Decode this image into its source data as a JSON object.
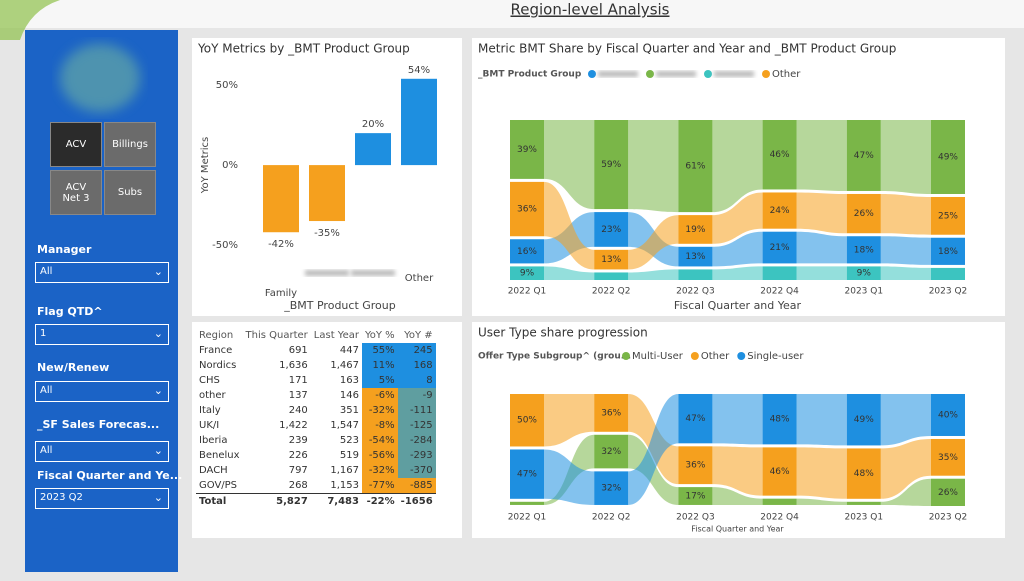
{
  "page_title": "Region-level Analysis",
  "sidebar": {
    "buttons": [
      "ACV",
      "Billings",
      "ACV Net 3",
      "Subs"
    ],
    "filters": [
      {
        "label": "Manager",
        "value": "All"
      },
      {
        "label": "Flag QTD^",
        "value": "1"
      },
      {
        "label": "New/Renew",
        "value": "All"
      },
      {
        "label": "_SF Sales Forecas...",
        "value": "All"
      },
      {
        "label": "Fiscal Quarter and Ye...",
        "value": "2023 Q2"
      }
    ]
  },
  "chart_data": [
    {
      "type": "bar",
      "title": "YoY Metrics by _BMT Product Group",
      "y_label": "YoY Metrics",
      "x_label": "_BMT Product Group",
      "categories": [
        "Family",
        null,
        null,
        "Other"
      ],
      "values": [
        -42,
        -35,
        20,
        54
      ],
      "value_labels": [
        "-42%",
        "-35%",
        "20%",
        "54%"
      ],
      "colors": [
        "#f5a01e",
        "#f5a01e",
        "#1e8fe0",
        "#1e8fe0"
      ],
      "ylim": [
        -60,
        62
      ],
      "yticks": [
        {
          "value": -50,
          "label": "-50%"
        },
        {
          "value": 0,
          "label": "0%"
        },
        {
          "value": 50,
          "label": "50%"
        }
      ]
    },
    {
      "type": "ribbon",
      "title": "Metric BMT Share by Fiscal Quarter and Year and _BMT Product Group",
      "legend_title": "_BMT Product Group",
      "x_label": "Fiscal Quarter and Year",
      "categories": [
        "2022 Q1",
        "2022 Q2",
        "2022 Q3",
        "2022 Q4",
        "2023 Q1",
        "2023 Q2"
      ],
      "series": [
        {
          "name": null,
          "color": "#1e8fe0",
          "values": [
            16,
            23,
            13,
            21,
            18,
            18
          ],
          "value_labels": [
            "16%",
            "23%",
            "13%",
            "21%",
            "18%",
            "18%"
          ]
        },
        {
          "name": null,
          "color": "#7ab648",
          "values": [
            39,
            59,
            61,
            46,
            47,
            49
          ],
          "value_labels": [
            "39%",
            "59%",
            "61%",
            "46%",
            "47%",
            "49%"
          ]
        },
        {
          "name": null,
          "color": "#3cc4c0",
          "values": [
            9,
            5,
            7,
            9,
            9,
            8
          ],
          "value_labels": [
            "9%",
            null,
            null,
            null,
            "9%",
            null
          ]
        },
        {
          "name": "Other",
          "color": "#f5a01e",
          "values": [
            36,
            13,
            19,
            24,
            26,
            25
          ],
          "value_labels": [
            "36%",
            "13%",
            "19%",
            "24%",
            "26%",
            "25%"
          ]
        }
      ]
    },
    {
      "type": "ribbon",
      "title": "User Type share progression",
      "legend_title": "Offer Type Subgroup^ (grou...",
      "x_label": "Fiscal Quarter and Year",
      "categories": [
        "2022 Q1",
        "2022 Q2",
        "2022 Q3",
        "2022 Q4",
        "2023 Q1",
        "2023 Q2"
      ],
      "series": [
        {
          "name": "Multi-User",
          "color": "#7ab648",
          "values": [
            3,
            32,
            17,
            6,
            3,
            26
          ],
          "value_labels": [
            null,
            "32%",
            "17%",
            null,
            null,
            "26%"
          ]
        },
        {
          "name": "Other",
          "color": "#f5a01e",
          "values": [
            50,
            36,
            36,
            46,
            48,
            35
          ],
          "value_labels": [
            "50%",
            "36%",
            "36%",
            "46%",
            "48%",
            "35%"
          ]
        },
        {
          "name": "Single-user",
          "color": "#1e8fe0",
          "values": [
            47,
            32,
            47,
            48,
            49,
            40
          ],
          "value_labels": [
            "47%",
            "32%",
            "47%",
            "48%",
            "49%",
            "40%"
          ]
        }
      ]
    }
  ],
  "table": {
    "header": [
      "Region",
      "This Quarter",
      "Last Year",
      "YoY %",
      "YoY #"
    ],
    "rows": [
      [
        "France",
        "691",
        "447",
        "55%",
        "245"
      ],
      [
        "Nordics",
        "1,636",
        "1,467",
        "11%",
        "168"
      ],
      [
        "CHS",
        "171",
        "163",
        "5%",
        "8"
      ],
      [
        "other",
        "137",
        "146",
        "-6%",
        "-9"
      ],
      [
        "Italy",
        "240",
        "351",
        "-32%",
        "-111"
      ],
      [
        "UK/I",
        "1,422",
        "1,547",
        "-8%",
        "-125"
      ],
      [
        "Iberia",
        "239",
        "523",
        "-54%",
        "-284"
      ],
      [
        "Benelux",
        "226",
        "519",
        "-56%",
        "-293"
      ],
      [
        "DACH",
        "797",
        "1,167",
        "-32%",
        "-370"
      ],
      [
        "GOV/PS",
        "268",
        "1,153",
        "-77%",
        "-885"
      ]
    ],
    "total": [
      "Total",
      "5,827",
      "7,483",
      "-22%",
      "-1656"
    ]
  }
}
